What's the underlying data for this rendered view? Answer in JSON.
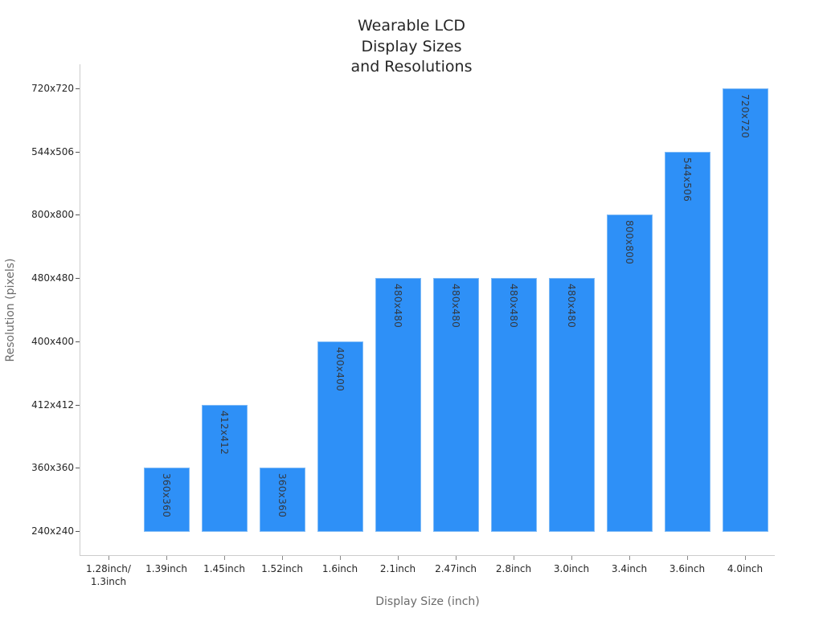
{
  "chart_data": {
    "type": "bar",
    "title": "Wearable LCD\nDisplay Sizes\nand Resolutions",
    "xlabel": "Display Size (inch)",
    "ylabel": "Resolution (pixels)",
    "categories": [
      "1.28inch/\n1.3inch",
      "1.39inch",
      "1.45inch",
      "1.52inch",
      "1.6inch",
      "2.1inch",
      "2.47inch",
      "2.8inch",
      "3.0inch",
      "3.4inch",
      "3.6inch",
      "4.0inch"
    ],
    "values": [
      "240x240",
      "360x360",
      "412x412",
      "360x360",
      "400x400",
      "480x480",
      "480x480",
      "480x480",
      "480x480",
      "800x800",
      "544x506",
      "720x720"
    ],
    "y_categories": [
      "240x240",
      "360x360",
      "412x412",
      "400x400",
      "480x480",
      "800x800",
      "544x506",
      "720x720"
    ],
    "bar_labels": [
      "",
      "360x360",
      "412x412",
      "360x360",
      "400x400",
      "480x480",
      "480x480",
      "480x480",
      "480x480",
      "800x800",
      "544x506",
      "720x720"
    ],
    "y_axis_type": "categorical",
    "grid": false,
    "legend": null,
    "bar_color": "#2e90f7"
  }
}
